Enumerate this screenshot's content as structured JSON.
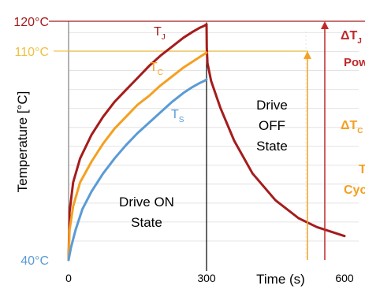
{
  "chart_data": {
    "type": "line",
    "xlabel": "Time (s)",
    "ylabel": "Temperature [°C]",
    "x_ticks": [
      {
        "value": 0,
        "label": "0"
      },
      {
        "value": 300,
        "label": "300"
      },
      {
        "value": 600,
        "label": "600"
      }
    ],
    "y_ticks": [
      {
        "value": 40,
        "label": "40°C",
        "color": "#5b9bd5"
      },
      {
        "value": 110,
        "label": "110°C",
        "color": "#f0c040"
      },
      {
        "value": 120,
        "label": "120°C",
        "color": "#a51c1c"
      }
    ],
    "xlim": [
      0,
      600
    ],
    "ylim": [
      40,
      120
    ],
    "grid": "horizontal",
    "series": [
      {
        "name": "TJ",
        "label_main": "T",
        "label_sub": "J",
        "color": "#a51c1c",
        "x": [
          0,
          2,
          10,
          25,
          50,
          75,
          100,
          125,
          150,
          175,
          200,
          225,
          250,
          270,
          285,
          295,
          300,
          300.5,
          302,
          310,
          330,
          360,
          400,
          450,
          500,
          540,
          600
        ],
        "y": [
          40,
          56,
          66,
          74,
          82,
          88,
          93,
          97,
          101,
          105,
          108.5,
          111.5,
          114.5,
          116.5,
          117.8,
          118.5,
          119,
          111,
          106,
          100,
          91,
          80,
          69,
          60,
          54,
          51,
          48
        ]
      },
      {
        "name": "TC",
        "label_main": "T",
        "label_sub": "C",
        "color": "#f4a020",
        "x": [
          0,
          2,
          10,
          25,
          50,
          75,
          100,
          125,
          150,
          175,
          200,
          225,
          250,
          270,
          285,
          295,
          300
        ],
        "y": [
          40,
          50,
          58,
          66,
          73,
          79,
          84,
          88,
          92,
          95,
          98.5,
          101.5,
          104.5,
          106.5,
          108,
          109,
          109.5
        ]
      },
      {
        "name": "TS",
        "label_main": "T",
        "label_sub": "S",
        "color": "#5b9bd5",
        "x": [
          0,
          5,
          15,
          30,
          50,
          75,
          100,
          125,
          150,
          175,
          200,
          225,
          250,
          270,
          285,
          295,
          300
        ],
        "y": [
          40,
          44,
          50,
          57,
          63,
          69,
          74,
          78.5,
          82.5,
          86,
          89.5,
          93,
          96,
          98,
          99.3,
          100,
          100.5
        ]
      }
    ],
    "state_labels": [
      {
        "lines": [
          "Drive ON",
          "State"
        ]
      },
      {
        "lines": [
          "Drive",
          "OFF",
          "State"
        ]
      }
    ],
    "side_labels": [
      {
        "main": "ΔT",
        "sub": "J",
        "color": "#c0282a"
      },
      {
        "main": "Pow",
        "sub": "",
        "color": "#c0282a"
      },
      {
        "main": "ΔT",
        "sub": "C",
        "color": "#f4a020"
      },
      {
        "main": "T",
        "sub": "",
        "color": "#f4a020"
      },
      {
        "main": "Cyc",
        "sub": "",
        "color": "#f4a020"
      }
    ]
  }
}
